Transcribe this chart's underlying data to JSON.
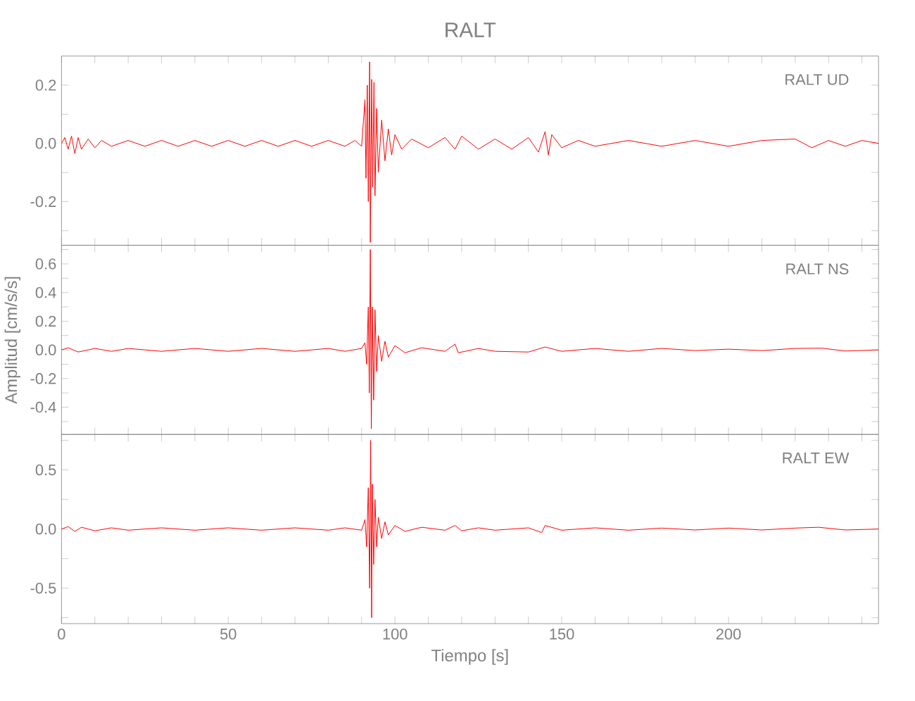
{
  "chart_data": [
    {
      "type": "line",
      "title": "RALT",
      "annotations": [
        "RALT UD"
      ],
      "color": "#ff0000",
      "tick_labels": "y",
      "x": [
        0,
        1,
        2,
        3,
        4,
        5,
        6,
        8,
        10,
        12,
        15,
        20,
        25,
        30,
        35,
        40,
        45,
        50,
        55,
        60,
        65,
        70,
        75,
        80,
        85,
        88,
        90,
        91,
        91.3,
        91.7,
        92,
        92.4,
        92.6,
        93,
        93.3,
        93.7,
        94,
        94.5,
        95,
        96,
        97,
        98,
        99,
        100,
        102,
        105,
        110,
        115,
        118,
        120,
        125,
        130,
        135,
        140,
        143,
        145,
        146,
        147,
        150,
        155,
        160,
        170,
        180,
        190,
        200,
        210,
        220,
        225,
        230,
        235,
        240,
        245
      ],
      "values": [
        0.0,
        0.02,
        -0.02,
        0.025,
        -0.035,
        0.02,
        -0.02,
        0.015,
        -0.015,
        0.01,
        -0.01,
        0.01,
        -0.01,
        0.01,
        -0.01,
        0.01,
        -0.01,
        0.01,
        -0.01,
        0.01,
        -0.01,
        0.01,
        -0.01,
        0.01,
        -0.01,
        0.01,
        -0.01,
        0.15,
        -0.12,
        0.2,
        -0.2,
        0.28,
        -0.34,
        0.22,
        -0.15,
        0.21,
        -0.18,
        0.12,
        -0.1,
        0.08,
        -0.06,
        0.05,
        -0.04,
        0.03,
        -0.02,
        0.015,
        -0.015,
        0.02,
        -0.02,
        0.025,
        -0.02,
        0.015,
        -0.02,
        0.02,
        -0.03,
        0.04,
        -0.04,
        0.03,
        -0.015,
        0.01,
        -0.01,
        0.01,
        -0.01,
        0.01,
        -0.01,
        0.01,
        0.015,
        -0.015,
        0.01,
        -0.01,
        0.01,
        0.0
      ],
      "xlim": [
        0,
        245
      ],
      "ylim": [
        -0.35,
        0.3
      ],
      "xticks": [
        {
          "value": 0,
          "label": null
        },
        {
          "value": 10,
          "label": null
        },
        {
          "value": 20,
          "label": null
        },
        {
          "value": 30,
          "label": null
        },
        {
          "value": 40,
          "label": null
        },
        {
          "value": 50,
          "label": null
        },
        {
          "value": 60,
          "label": null
        },
        {
          "value": 70,
          "label": null
        },
        {
          "value": 80,
          "label": null
        },
        {
          "value": 90,
          "label": null
        },
        {
          "value": 100,
          "label": null
        },
        {
          "value": 110,
          "label": null
        },
        {
          "value": 120,
          "label": null
        },
        {
          "value": 130,
          "label": null
        },
        {
          "value": 140,
          "label": null
        },
        {
          "value": 150,
          "label": null
        },
        {
          "value": 160,
          "label": null
        },
        {
          "value": 170,
          "label": null
        },
        {
          "value": 180,
          "label": null
        },
        {
          "value": 190,
          "label": null
        },
        {
          "value": 200,
          "label": null
        },
        {
          "value": 210,
          "label": null
        },
        {
          "value": 220,
          "label": null
        },
        {
          "value": 230,
          "label": null
        },
        {
          "value": 240,
          "label": null
        }
      ],
      "yticks": [
        {
          "value": -0.3,
          "label": null
        },
        -0.2,
        {
          "value": -0.1,
          "label": null
        },
        {
          "value": 0,
          "label": "0.0"
        },
        {
          "value": 0.1,
          "label": null
        },
        0.2
      ]
    },
    {
      "type": "line",
      "ylabel": "Amplitud [cm/s/s]",
      "annotations": [
        "RALT NS"
      ],
      "color": "#ff0000",
      "tick_labels": "y",
      "x": [
        0,
        2,
        5,
        10,
        15,
        20,
        30,
        40,
        50,
        60,
        70,
        80,
        85,
        90,
        91,
        91.5,
        92,
        92.3,
        92.6,
        92.9,
        93.2,
        93.6,
        94,
        94.5,
        95,
        96,
        97,
        98,
        100,
        103,
        108,
        115,
        118,
        119,
        125,
        130,
        140,
        145,
        150,
        160,
        170,
        180,
        190,
        200,
        210,
        220,
        228,
        235,
        245
      ],
      "values": [
        0.0,
        0.015,
        -0.015,
        0.01,
        -0.01,
        0.01,
        -0.01,
        0.01,
        -0.01,
        0.01,
        -0.01,
        0.01,
        -0.01,
        0.01,
        0.05,
        -0.1,
        0.3,
        -0.3,
        0.7,
        -0.55,
        0.3,
        -0.35,
        0.28,
        -0.15,
        0.1,
        -0.08,
        0.06,
        -0.05,
        0.03,
        -0.02,
        0.015,
        -0.01,
        0.04,
        -0.02,
        0.01,
        -0.01,
        -0.015,
        0.02,
        -0.01,
        0.01,
        -0.01,
        0.01,
        -0.005,
        0.005,
        -0.005,
        0.01,
        0.012,
        -0.008,
        0.0
      ],
      "xlim": [
        0,
        245
      ],
      "ylim": [
        -0.59,
        0.73
      ],
      "xticks": [
        {
          "value": 0,
          "label": null
        },
        {
          "value": 10,
          "label": null
        },
        {
          "value": 20,
          "label": null
        },
        {
          "value": 30,
          "label": null
        },
        {
          "value": 40,
          "label": null
        },
        {
          "value": 50,
          "label": null
        },
        {
          "value": 60,
          "label": null
        },
        {
          "value": 70,
          "label": null
        },
        {
          "value": 80,
          "label": null
        },
        {
          "value": 90,
          "label": null
        },
        {
          "value": 100,
          "label": null
        },
        {
          "value": 110,
          "label": null
        },
        {
          "value": 120,
          "label": null
        },
        {
          "value": 130,
          "label": null
        },
        {
          "value": 140,
          "label": null
        },
        {
          "value": 150,
          "label": null
        },
        {
          "value": 160,
          "label": null
        },
        {
          "value": 170,
          "label": null
        },
        {
          "value": 180,
          "label": null
        },
        {
          "value": 190,
          "label": null
        },
        {
          "value": 200,
          "label": null
        },
        {
          "value": 210,
          "label": null
        },
        {
          "value": 220,
          "label": null
        },
        {
          "value": 230,
          "label": null
        },
        {
          "value": 240,
          "label": null
        }
      ],
      "yticks": [
        {
          "value": -0.5,
          "label": null
        },
        -0.4,
        {
          "value": -0.3,
          "label": null
        },
        -0.2,
        {
          "value": -0.1,
          "label": null
        },
        {
          "value": 0,
          "label": "0.0"
        },
        {
          "value": 0.1,
          "label": null
        },
        0.2,
        {
          "value": 0.3,
          "label": null
        },
        0.4,
        {
          "value": 0.5,
          "label": null
        },
        0.6,
        {
          "value": 0.7,
          "label": null
        }
      ]
    },
    {
      "type": "line",
      "xlabel": "Tiempo [s]",
      "annotations": [
        "RALT EW"
      ],
      "color": "#ff0000",
      "x": [
        0,
        2,
        4,
        6,
        10,
        15,
        20,
        30,
        40,
        50,
        60,
        70,
        80,
        85,
        90,
        91,
        91.5,
        92,
        92.4,
        92.7,
        93,
        93.2,
        93.6,
        94,
        94.5,
        95,
        96,
        97,
        98,
        100,
        103,
        108,
        115,
        118,
        120,
        125,
        130,
        140,
        144,
        145,
        150,
        160,
        170,
        180,
        190,
        200,
        210,
        220,
        227,
        235,
        245
      ],
      "values": [
        0.0,
        0.02,
        -0.02,
        0.015,
        -0.015,
        0.01,
        -0.01,
        0.01,
        -0.01,
        0.01,
        -0.01,
        0.01,
        -0.01,
        0.01,
        -0.01,
        0.08,
        -0.15,
        0.35,
        -0.5,
        0.75,
        -0.75,
        0.38,
        -0.3,
        0.25,
        -0.15,
        0.1,
        -0.08,
        0.06,
        -0.05,
        0.03,
        -0.02,
        0.015,
        -0.01,
        0.03,
        -0.015,
        0.01,
        -0.01,
        0.01,
        -0.03,
        0.03,
        -0.01,
        0.01,
        -0.01,
        0.008,
        -0.008,
        0.008,
        -0.008,
        0.008,
        0.015,
        -0.008,
        0.0
      ],
      "xlim": [
        0,
        245
      ],
      "ylim": [
        -0.8,
        0.8
      ],
      "xticks": [
        0,
        {
          "value": 10,
          "label": null
        },
        {
          "value": 20,
          "label": null
        },
        {
          "value": 30,
          "label": null
        },
        {
          "value": 40,
          "label": null
        },
        50,
        {
          "value": 60,
          "label": null
        },
        {
          "value": 70,
          "label": null
        },
        {
          "value": 80,
          "label": null
        },
        {
          "value": 90,
          "label": null
        },
        100,
        {
          "value": 110,
          "label": null
        },
        {
          "value": 120,
          "label": null
        },
        {
          "value": 130,
          "label": null
        },
        {
          "value": 140,
          "label": null
        },
        150,
        {
          "value": 160,
          "label": null
        },
        {
          "value": 170,
          "label": null
        },
        {
          "value": 180,
          "label": null
        },
        {
          "value": 190,
          "label": null
        },
        200,
        {
          "value": 210,
          "label": null
        },
        {
          "value": 220,
          "label": null
        },
        {
          "value": 230,
          "label": null
        },
        {
          "value": 240,
          "label": null
        }
      ],
      "yticks": [
        {
          "value": -0.75,
          "label": null
        },
        -0.5,
        {
          "value": -0.25,
          "label": null
        },
        {
          "value": 0,
          "label": "0.0"
        },
        {
          "value": 0.25,
          "label": null
        },
        0.5,
        {
          "value": 0.75,
          "label": null
        }
      ]
    }
  ]
}
